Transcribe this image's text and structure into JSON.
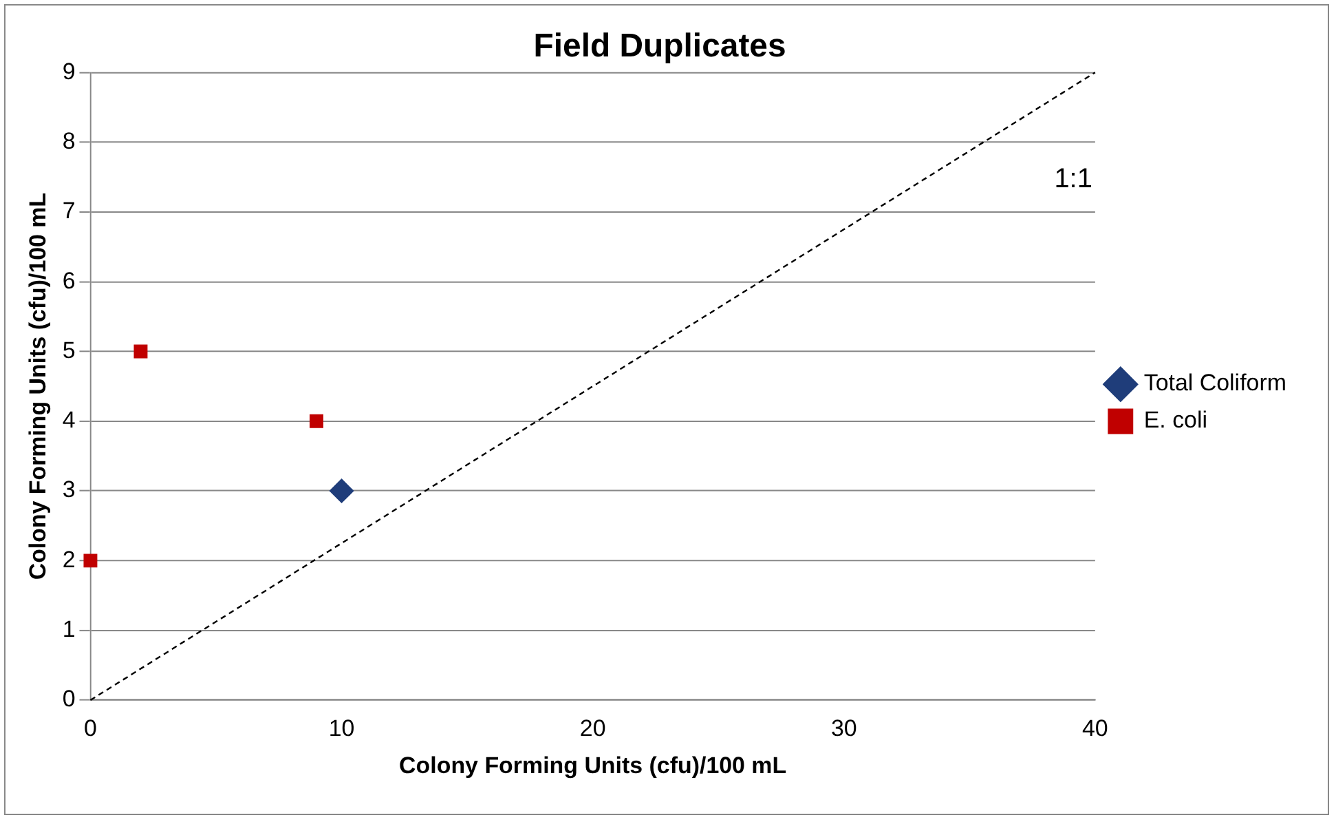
{
  "chart_data": {
    "type": "scatter",
    "title": "Field Duplicates",
    "xlabel": "Colony Forming Units (cfu)/100 mL",
    "ylabel": "Colony Forming Units (cfu)/100 mL",
    "series": [
      {
        "name": "Total Coliform",
        "color": "#1f3d7a",
        "marker": "diamond",
        "x": [
          10
        ],
        "values": [
          3
        ]
      },
      {
        "name": "E. coli",
        "color": "#c00000",
        "marker": "square",
        "x": [
          0,
          2,
          9
        ],
        "values": [
          2,
          5,
          4
        ]
      },
      {
        "type": "line",
        "color": "#000000",
        "marker": "none",
        "line_style": "dashed",
        "x": [
          0,
          40
        ],
        "values": [
          0,
          9
        ]
      }
    ],
    "annotations": [
      "1:1"
    ],
    "xlim": [
      0,
      40
    ],
    "xticks": [
      0,
      10,
      20,
      30,
      40
    ],
    "ylim": [
      0,
      9
    ],
    "yticks": [
      0,
      1,
      2,
      3,
      4,
      5,
      6,
      7,
      8,
      9
    ],
    "grid": "y",
    "legend": "right"
  }
}
